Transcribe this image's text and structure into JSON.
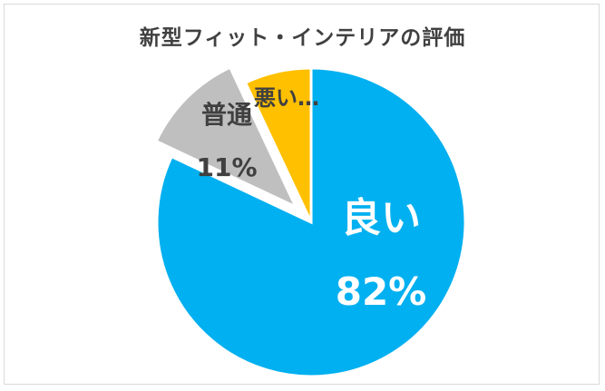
{
  "chart_data": {
    "type": "pie",
    "title": "新型フィット・インテリアの評価",
    "categories": [
      "良い",
      "普通",
      "悪い…"
    ],
    "values": [
      82,
      11,
      7
    ],
    "value_labels": [
      "82%",
      "11%",
      ""
    ],
    "colors": [
      "#00b0f0",
      "#bfbfbf",
      "#ffc000"
    ],
    "start_angle_deg": 0,
    "direction": "clockwise",
    "exploded_category": "普通",
    "legend": "none"
  }
}
